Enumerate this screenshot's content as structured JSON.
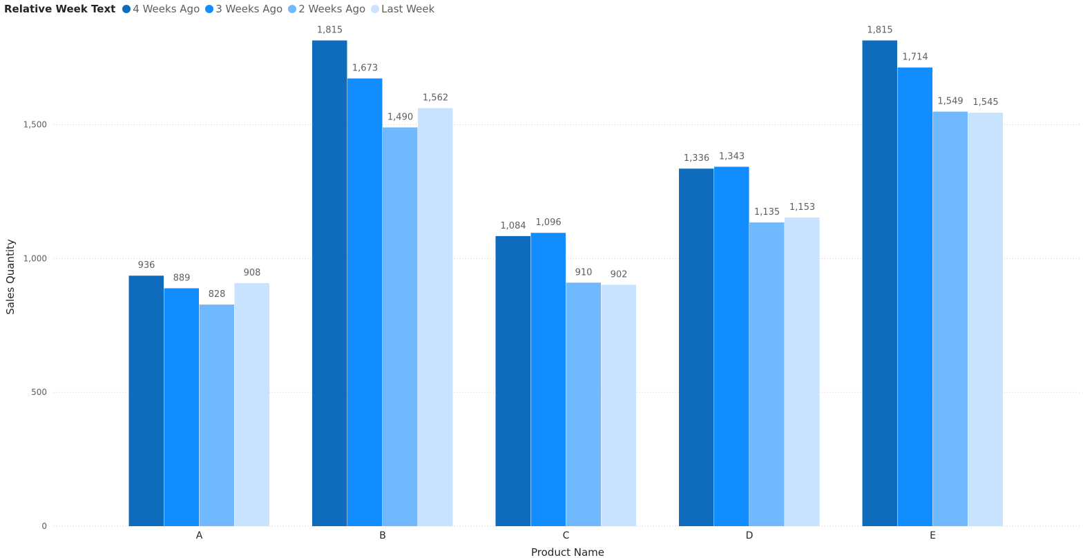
{
  "legend": {
    "title": "Relative Week Text"
  },
  "chart_data": {
    "type": "bar",
    "title": "",
    "xlabel": "Product Name",
    "ylabel": "Sales Quantity",
    "ylim": [
      0,
      1850
    ],
    "yticks": [
      0,
      500,
      1000,
      1500
    ],
    "ytick_labels": [
      "0",
      "500",
      "1,000",
      "1,500"
    ],
    "grid": true,
    "legend_position": "top-left",
    "categories": [
      "A",
      "B",
      "C",
      "D",
      "E"
    ],
    "series": [
      {
        "name": "4 Weeks Ago",
        "color": "#0F6CBD",
        "values": [
          936,
          1815,
          1084,
          1336,
          1815
        ],
        "labels": [
          "936",
          "1,815",
          "1,084",
          "1,336",
          "1,815"
        ]
      },
      {
        "name": "3 Weeks Ago",
        "color": "#118DFF",
        "values": [
          889,
          1673,
          1096,
          1343,
          1714
        ],
        "labels": [
          "889",
          "1,673",
          "1,096",
          "1,343",
          "1,714"
        ]
      },
      {
        "name": "2 Weeks Ago",
        "color": "#71B9FF",
        "values": [
          828,
          1490,
          910,
          1135,
          1549
        ],
        "labels": [
          "828",
          "1,490",
          "910",
          "1,135",
          "1,549"
        ]
      },
      {
        "name": "Last Week",
        "color": "#C7E3FF",
        "values": [
          908,
          1562,
          902,
          1153,
          1545
        ],
        "labels": [
          "908",
          "1,562",
          "902",
          "1,153",
          "1,545"
        ]
      }
    ]
  }
}
